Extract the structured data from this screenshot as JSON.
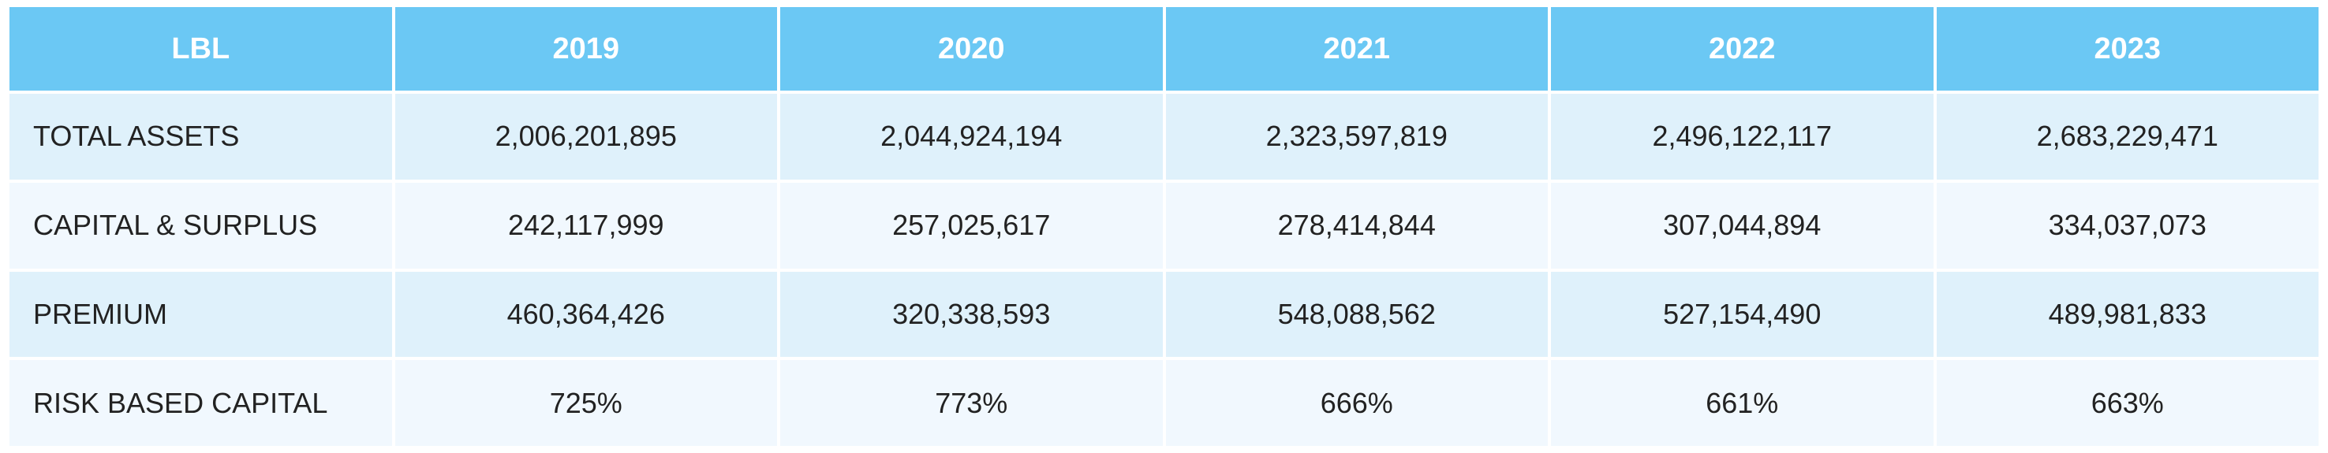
{
  "table": {
    "columns": [
      "LBL",
      "2019",
      "2020",
      "2021",
      "2022",
      "2023"
    ],
    "rows": [
      {
        "label": "TOTAL ASSETS",
        "values": [
          "2,006,201,895",
          "2,044,924,194",
          "2,323,597,819",
          "2,496,122,117",
          "2,683,229,471"
        ]
      },
      {
        "label": "CAPITAL & SURPLUS",
        "values": [
          "242,117,999",
          "257,025,617",
          "278,414,844",
          "307,044,894",
          "334,037,073"
        ]
      },
      {
        "label": "PREMIUM",
        "values": [
          "460,364,426",
          "320,338,593",
          "548,088,562",
          "527,154,490",
          "489,981,833"
        ]
      },
      {
        "label": "RISK BASED CAPITAL",
        "values": [
          "725%",
          "773%",
          "666%",
          "661%",
          "663%"
        ]
      }
    ]
  },
  "colors": {
    "header_bg": "#6bc8f4",
    "row_odd_bg": "#dff1fb",
    "row_even_bg": "#f1f8fe"
  }
}
